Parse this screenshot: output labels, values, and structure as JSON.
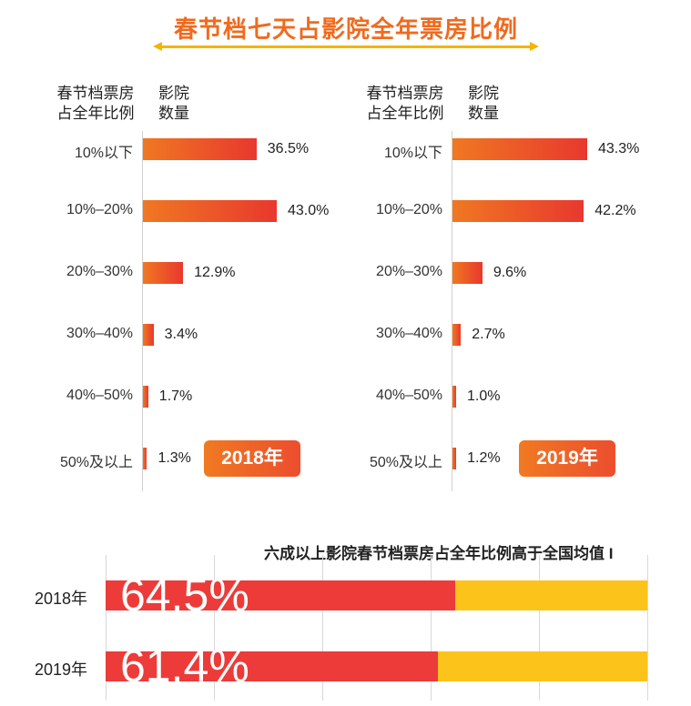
{
  "title": "春节档七天占影院全年票房比例",
  "panels": {
    "cat_header": "春节档票房\n占全年比例",
    "qty_header": "影院\n数量"
  },
  "chart_data": [
    {
      "type": "bar",
      "orientation": "horizontal",
      "title": "2018年",
      "xlabel": "影院数量",
      "ylabel": "春节档票房占全年比例",
      "categories": [
        "10%以下",
        "10%–20%",
        "20%–30%",
        "30%–40%",
        "40%–50%",
        "50%及以上"
      ],
      "values": [
        36.5,
        43.0,
        12.9,
        3.4,
        1.7,
        1.3
      ],
      "value_labels": [
        "36.5%",
        "43.0%",
        "12.9%",
        "3.4%",
        "1.7%",
        "1.3%"
      ],
      "xlim": [
        0,
        43.3
      ]
    },
    {
      "type": "bar",
      "orientation": "horizontal",
      "title": "2019年",
      "xlabel": "影院数量",
      "ylabel": "春节档票房占全年比例",
      "categories": [
        "10%以下",
        "10%–20%",
        "20%–30%",
        "30%–40%",
        "40%–50%",
        "50%及以上"
      ],
      "values": [
        43.3,
        42.2,
        9.6,
        2.7,
        1.0,
        1.2
      ],
      "value_labels": [
        "43.3%",
        "42.2%",
        "9.6%",
        "2.7%",
        "1.0%",
        "1.2%"
      ],
      "xlim": [
        0,
        43.3
      ]
    },
    {
      "type": "bar",
      "orientation": "horizontal",
      "stacked": true,
      "title": "六成以上影院春节档票房占全年比例高于全国均值 I",
      "categories": [
        "2018年",
        "2019年"
      ],
      "values": [
        64.5,
        61.4
      ],
      "value_labels": [
        "64.5%",
        "61.4%"
      ],
      "xlim": [
        0,
        100
      ],
      "colors": {
        "value": "#ec3b39",
        "remainder": "#fcc31a"
      }
    }
  ],
  "colors": {
    "accent": "#f06a1e",
    "underline": "#f5b400",
    "bar_start": "#f07822",
    "bar_end": "#e8382e"
  }
}
